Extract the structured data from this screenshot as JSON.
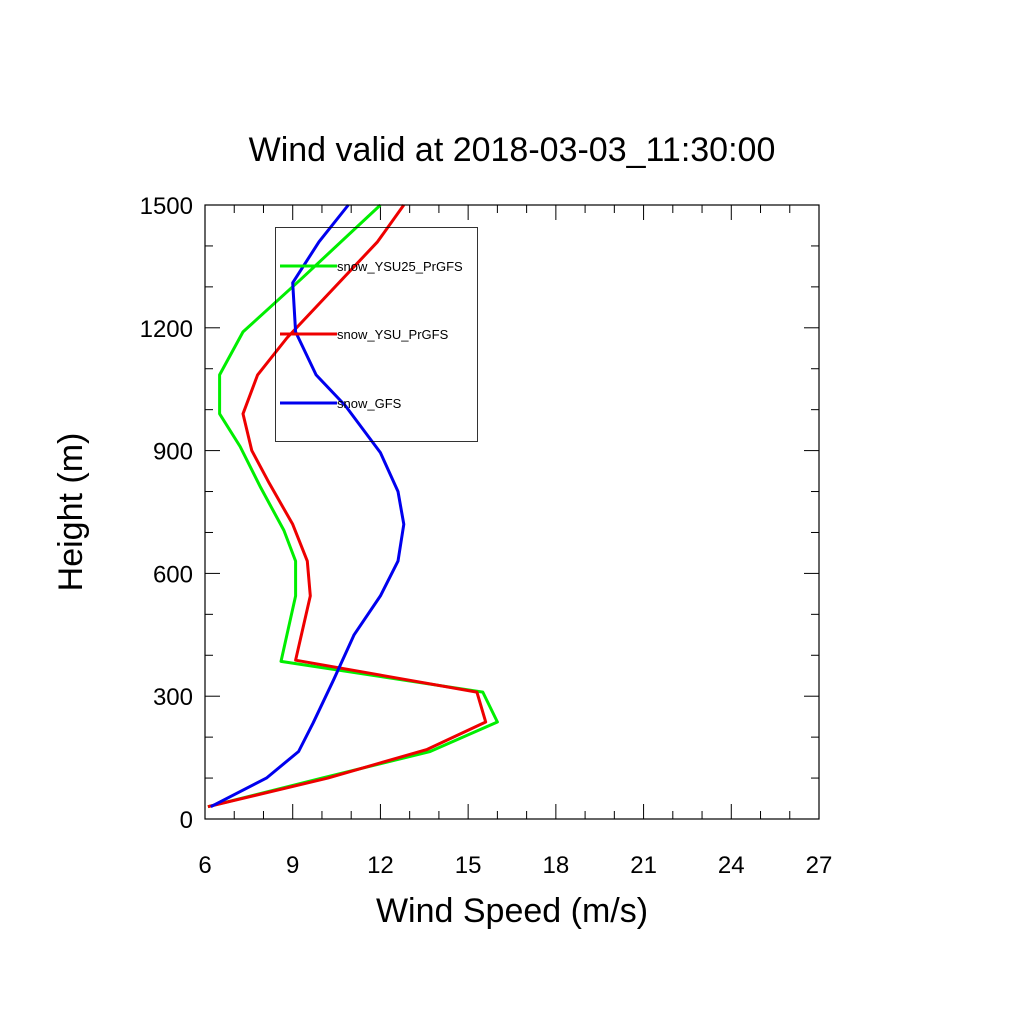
{
  "chart_data": {
    "type": "line",
    "title": "Wind valid at 2018-03-03_11:30:00",
    "xlabel": "Wind Speed (m/s)",
    "ylabel": "Height (m)",
    "xlim": [
      6,
      27
    ],
    "ylim": [
      0,
      1500
    ],
    "xticks": [
      6,
      9,
      12,
      15,
      18,
      21,
      24,
      27
    ],
    "yticks": [
      0,
      300,
      600,
      900,
      1200,
      1500
    ],
    "x_minor_step": 1,
    "y_minor_step": 100,
    "grid": false,
    "legend_position": "top-left inside",
    "series": [
      {
        "name": "snow_YSU25_PrGFS",
        "color": "#00ee00",
        "points": [
          [
            6.1,
            30
          ],
          [
            10.0,
            100
          ],
          [
            13.7,
            165
          ],
          [
            16.0,
            237
          ],
          [
            15.5,
            310
          ],
          [
            8.6,
            385
          ],
          [
            9.1,
            545
          ],
          [
            9.1,
            630
          ],
          [
            8.7,
            705
          ],
          [
            7.9,
            810
          ],
          [
            7.2,
            910
          ],
          [
            6.5,
            990
          ],
          [
            6.5,
            1085
          ],
          [
            7.3,
            1190
          ],
          [
            9.3,
            1320
          ],
          [
            12.0,
            1500
          ]
        ]
      },
      {
        "name": "snow_YSU_PrGFS",
        "color": "#ee0000",
        "points": [
          [
            6.1,
            30
          ],
          [
            10.2,
            100
          ],
          [
            13.6,
            170
          ],
          [
            15.6,
            237
          ],
          [
            15.3,
            310
          ],
          [
            9.1,
            388
          ],
          [
            9.6,
            545
          ],
          [
            9.5,
            630
          ],
          [
            9.0,
            720
          ],
          [
            8.2,
            820
          ],
          [
            7.6,
            900
          ],
          [
            7.3,
            990
          ],
          [
            7.8,
            1085
          ],
          [
            8.8,
            1175
          ],
          [
            11.9,
            1410
          ],
          [
            12.8,
            1500
          ]
        ]
      },
      {
        "name": "snow_GFS",
        "color": "#0000ee",
        "points": [
          [
            6.2,
            30
          ],
          [
            8.1,
            100
          ],
          [
            9.2,
            165
          ],
          [
            9.7,
            235
          ],
          [
            10.4,
            340
          ],
          [
            11.1,
            450
          ],
          [
            12.0,
            545
          ],
          [
            12.6,
            630
          ],
          [
            12.8,
            720
          ],
          [
            12.6,
            800
          ],
          [
            12.0,
            895
          ],
          [
            10.8,
            1010
          ],
          [
            9.8,
            1085
          ],
          [
            9.1,
            1190
          ],
          [
            9.0,
            1310
          ],
          [
            9.9,
            1410
          ],
          [
            10.9,
            1500
          ]
        ]
      }
    ]
  }
}
